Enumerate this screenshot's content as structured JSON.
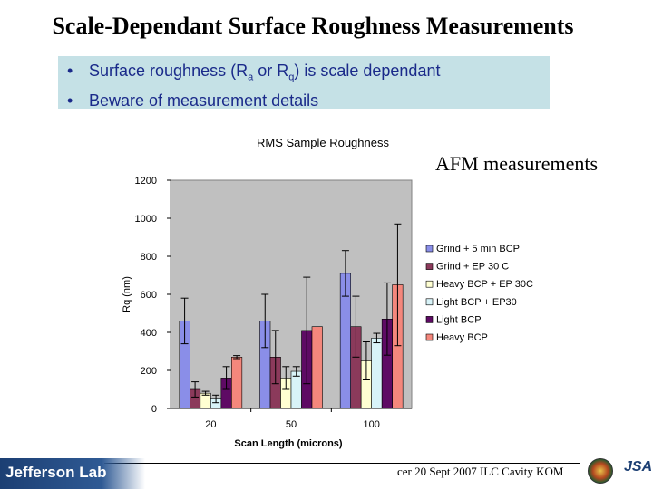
{
  "slide": {
    "title": "Scale-Dependant Surface Roughness Measurements",
    "bullets": [
      {
        "pre": "Surface roughness (R",
        "sub1": "a",
        "mid": " or R",
        "sub2": "q",
        "post": ") is scale dependant"
      },
      {
        "pre": "Beware of measurement details",
        "sub1": "",
        "mid": "",
        "sub2": "",
        "post": ""
      }
    ],
    "bullet_symbol": "•",
    "note": "AFM measurements",
    "footer": "cer 20 Sept 2007 ILC Cavity KOM",
    "logo_text": "Jefferson Lab",
    "logo2_text": "JSA"
  },
  "chart_data": {
    "type": "bar",
    "title": "RMS Sample Roughness",
    "xlabel": "Scan Length (microns)",
    "ylabel": "Rq (nm)",
    "categories": [
      "20",
      "50",
      "100"
    ],
    "ylim": [
      0,
      1200
    ],
    "yticks": [
      0,
      200,
      400,
      600,
      800,
      1000,
      1200
    ],
    "grid": false,
    "legend_position": "right",
    "series": [
      {
        "name": "Grind + 5 min BCP",
        "color": "#8a8ee8",
        "values": [
          460,
          460,
          710
        ],
        "errors": [
          120,
          140,
          120
        ]
      },
      {
        "name": "Grind + EP 30 C",
        "color": "#8b3a5b",
        "values": [
          100,
          270,
          430
        ],
        "errors": [
          40,
          140,
          160
        ]
      },
      {
        "name": "Heavy BCP + EP 30C",
        "color": "#ffffd2",
        "values": [
          80,
          160,
          250
        ],
        "errors": [
          10,
          60,
          100
        ]
      },
      {
        "name": "Light BCP + EP30",
        "color": "#d8f3f8",
        "values": [
          50,
          195,
          370
        ],
        "errors": [
          20,
          25,
          25
        ]
      },
      {
        "name": "Light BCP",
        "color": "#5e0a64",
        "values": [
          160,
          410,
          470
        ],
        "errors": [
          60,
          280,
          190
        ]
      },
      {
        "name": "Heavy BCP",
        "color": "#f4877c",
        "values": [
          270,
          430,
          650
        ],
        "errors": [
          8,
          0,
          320
        ]
      }
    ]
  }
}
